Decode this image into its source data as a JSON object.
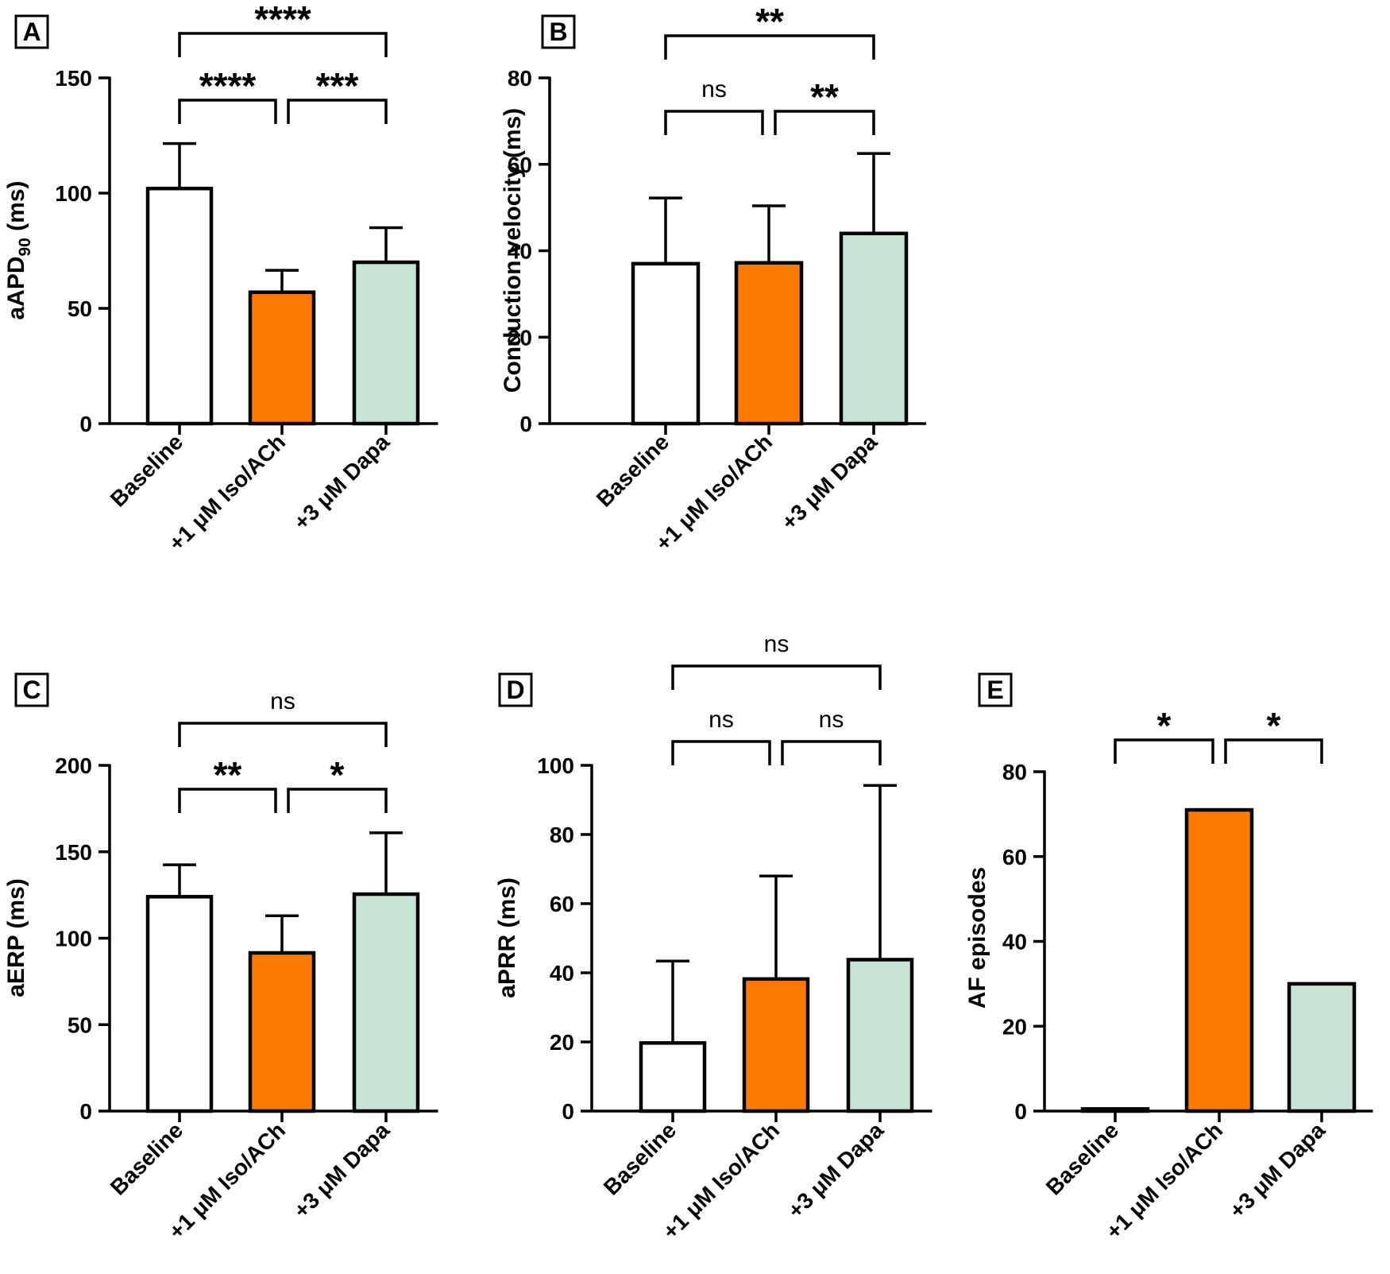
{
  "chart_data": [
    {
      "panel": "A",
      "type": "bar",
      "ylabel": "aAPD",
      "ylabel_sub": "90",
      "ylabel_suffix": " (ms)",
      "ylim": [
        0,
        150
      ],
      "yticks": [
        0,
        50,
        100,
        150
      ],
      "categories": [
        "Baseline",
        "+1 μM Iso/ACh",
        "+3 μM Dapa"
      ],
      "values": [
        102,
        57,
        70
      ],
      "errors": [
        19.5,
        9.5,
        15
      ],
      "bar_colors": [
        "#ffffff",
        "#ff7a00",
        "#c6e3d3"
      ],
      "comparisons": [
        {
          "from": 0,
          "to": 1,
          "label": "****"
        },
        {
          "from": 1,
          "to": 2,
          "label": "***"
        },
        {
          "from": 0,
          "to": 2,
          "label": "****"
        }
      ]
    },
    {
      "panel": "B",
      "type": "bar",
      "ylabel": "Conduction velocity (ms)",
      "ylim": [
        0,
        80
      ],
      "yticks": [
        0,
        20,
        40,
        60,
        80
      ],
      "categories": [
        "Baseline",
        "+1 μM Iso/ACh",
        "+3 μM Dapa"
      ],
      "values": [
        37,
        37.2,
        44
      ],
      "errors": [
        15.2,
        13.2,
        18.5
      ],
      "bar_colors": [
        "#ffffff",
        "#ff7a00",
        "#c6e3d3"
      ],
      "comparisons": [
        {
          "from": 0,
          "to": 1,
          "label": "ns"
        },
        {
          "from": 1,
          "to": 2,
          "label": "**"
        },
        {
          "from": 0,
          "to": 2,
          "label": "**"
        }
      ]
    },
    {
      "panel": "C",
      "type": "bar",
      "ylabel": "aERP (ms)",
      "ylim": [
        0,
        200
      ],
      "yticks": [
        0,
        50,
        100,
        150,
        200
      ],
      "categories": [
        "Baseline",
        "+1 μM Iso/ACh",
        "+3 μM Dapa"
      ],
      "values": [
        124,
        91.5,
        125.5
      ],
      "errors": [
        18.5,
        21.5,
        35.5
      ],
      "bar_colors": [
        "#ffffff",
        "#ff7a00",
        "#c6e3d3"
      ],
      "comparisons": [
        {
          "from": 0,
          "to": 1,
          "label": "**"
        },
        {
          "from": 1,
          "to": 2,
          "label": "*"
        },
        {
          "from": 0,
          "to": 2,
          "label": "ns"
        }
      ]
    },
    {
      "panel": "D",
      "type": "bar",
      "ylabel": "aPRR (ms)",
      "ylim": [
        0,
        100
      ],
      "yticks": [
        0,
        20,
        40,
        60,
        80,
        100
      ],
      "categories": [
        "Baseline",
        "+1 μM Iso/ACh",
        "+3 μM Dapa"
      ],
      "values": [
        19.7,
        38.2,
        43.8
      ],
      "errors": [
        23.7,
        29.8,
        50.4
      ],
      "bar_colors": [
        "#ffffff",
        "#ff7a00",
        "#c6e3d3"
      ],
      "comparisons": [
        {
          "from": 0,
          "to": 1,
          "label": "ns"
        },
        {
          "from": 1,
          "to": 2,
          "label": "ns"
        },
        {
          "from": 0,
          "to": 2,
          "label": "ns"
        }
      ]
    },
    {
      "panel": "E",
      "type": "bar",
      "ylabel": "AF episodes",
      "ylim": [
        0,
        80
      ],
      "yticks": [
        0,
        20,
        40,
        60,
        80
      ],
      "categories": [
        "Baseline",
        "+1 μM Iso/ACh",
        "+3 μM Dapa"
      ],
      "values": [
        0.5,
        71,
        30
      ],
      "errors": [
        null,
        null,
        null
      ],
      "bar_colors": [
        "#ffffff",
        "#ff7a00",
        "#c6e3d3"
      ],
      "comparisons": [
        {
          "from": 0,
          "to": 1,
          "label": "*"
        },
        {
          "from": 1,
          "to": 2,
          "label": "*"
        }
      ]
    }
  ]
}
